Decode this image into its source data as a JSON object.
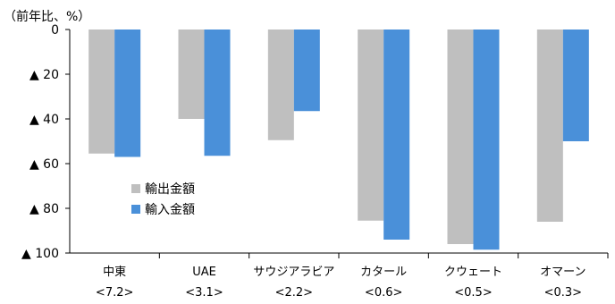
{
  "chart_data": {
    "type": "bar",
    "unit_label": "（前年比、%）",
    "categories": [
      "中東",
      "UAE",
      "サウジアラビア",
      "カタール",
      "クウェート",
      "オマーン"
    ],
    "category_sublabels": [
      "<7.2>",
      "<3.1>",
      "<2.2>",
      "<0.6>",
      "<0.5>",
      "<0.3>"
    ],
    "series": [
      {
        "name": "輸出金額",
        "color": "#bfbfbf",
        "values": [
          -55.5,
          -40,
          -49.5,
          -85.5,
          -96,
          -86
        ]
      },
      {
        "name": "輸入金額",
        "color": "#4a90d9",
        "values": [
          -57,
          -56.5,
          -36.5,
          -94,
          -98.5,
          -50
        ]
      }
    ],
    "ylim": [
      -100,
      0
    ],
    "y_ticks": [
      0,
      -20,
      -40,
      -60,
      -80,
      -100
    ],
    "y_tick_labels": [
      "0",
      "▲ 20",
      "▲ 40",
      "▲ 60",
      "▲ 80",
      "▲ 100"
    ],
    "legend_position": "inside-left",
    "grid": false
  }
}
